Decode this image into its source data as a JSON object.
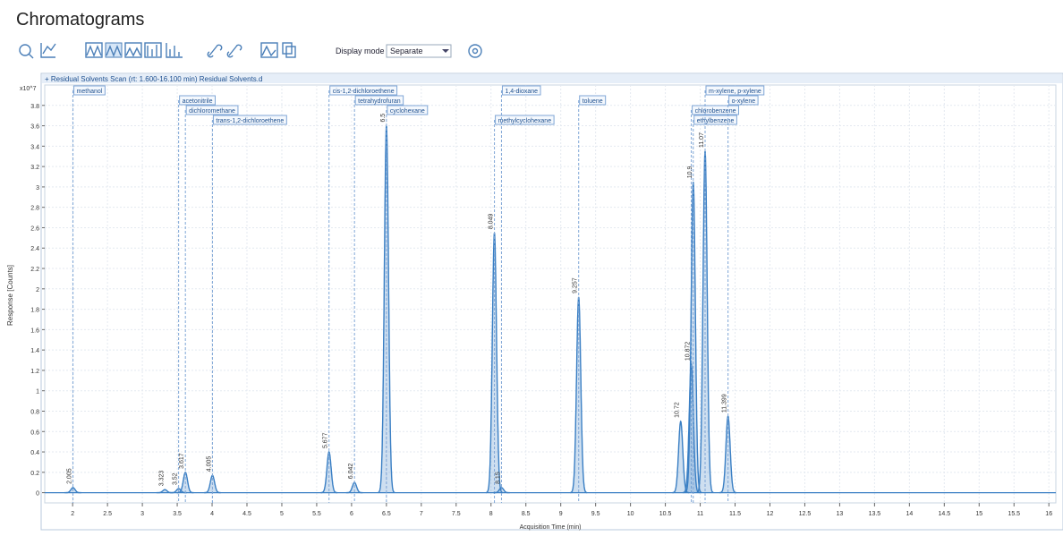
{
  "window": {
    "title": "Chromatograms"
  },
  "toolbar": {
    "display_mode_label": "Display mode",
    "display_mode_value": "Separate"
  },
  "chart_data": {
    "type": "chromatogram",
    "header": "+ Residual Solvents Scan (rt: 1.600-16.100 min) Residual Solvents.d",
    "y_multiplier": "x10^7",
    "ylabel": "Response [Counts]",
    "xlabel": "Acquisition Time (min)",
    "color": "#3a7fc4",
    "xlim": [
      1.6,
      16.1
    ],
    "ylim": [
      -0.1,
      4.0
    ],
    "xticks": [
      2,
      2.5,
      3,
      3.5,
      4,
      4.5,
      5,
      5.5,
      6,
      6.5,
      7,
      7.5,
      8,
      8.5,
      9,
      9.5,
      10,
      10.5,
      11,
      11.5,
      12,
      12.5,
      13,
      13.5,
      14,
      14.5,
      15,
      15.5,
      16
    ],
    "yticks": [
      0,
      0.2,
      0.4,
      0.6,
      0.8,
      1,
      1.2,
      1.4,
      1.6,
      1.8,
      2,
      2.2,
      2.4,
      2.6,
      2.8,
      3,
      3.2,
      3.4,
      3.6,
      3.8
    ],
    "grid": true,
    "peaks": [
      {
        "name": "methanol",
        "rt": 2.005,
        "height": 0.05
      },
      {
        "name": null,
        "rt": 3.323,
        "height": 0.03
      },
      {
        "name": "acetonitrile",
        "rt": 3.52,
        "height": 0.04
      },
      {
        "name": "dichloromethane",
        "rt": 3.617,
        "height": 0.2
      },
      {
        "name": "trans-1,2-dichloroethene",
        "rt": 4.005,
        "height": 0.17
      },
      {
        "name": "cis-1,2-dichloroethene",
        "rt": 5.677,
        "height": 0.4
      },
      {
        "name": "tetrahydrofuran",
        "rt": 6.042,
        "height": 0.1
      },
      {
        "name": "cyclohexane",
        "rt": 6.5,
        "height": 3.6
      },
      {
        "name": "methylcyclohexane",
        "rt": 8.049,
        "height": 2.55
      },
      {
        "name": "1,4-dioxane",
        "rt": 8.15,
        "height": 0.05
      },
      {
        "name": "toluene",
        "rt": 9.257,
        "height": 1.92
      },
      {
        "name": null,
        "rt": 10.72,
        "height": 0.7
      },
      {
        "name": "chlorobenzene",
        "rt": 10.872,
        "height": 1.26
      },
      {
        "name": "ethylbenzene",
        "rt": 10.9,
        "height": 3.05
      },
      {
        "name": "m-xylene, p-xylene",
        "rt": 11.07,
        "height": 3.35
      },
      {
        "name": "o-xylene",
        "rt": 11.399,
        "height": 0.75
      }
    ]
  }
}
